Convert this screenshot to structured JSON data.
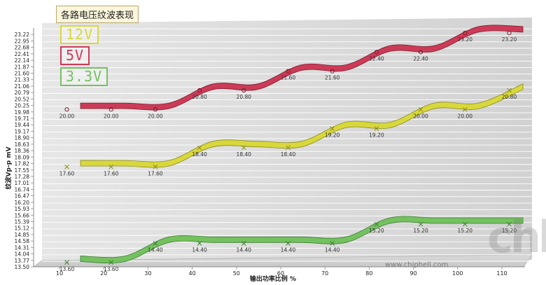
{
  "chart_data": {
    "type": "line",
    "title": "各路电压纹波表现",
    "xlabel": "输出功率比例 %",
    "ylabel": "纹波Vp-p mV",
    "x": [
      10,
      20,
      30,
      40,
      50,
      60,
      70,
      80,
      90,
      100,
      110
    ],
    "xticks": [
      10,
      20,
      30,
      40,
      50,
      60,
      70,
      80,
      90,
      100,
      110
    ],
    "ylim": [
      13.5,
      23.49
    ],
    "yticks": [
      "13.50",
      "13.77",
      "14.04",
      "14.31",
      "14.58",
      "14.85",
      "15.12",
      "15.39",
      "15.66",
      "15.93",
      "16.20",
      "16.47",
      "16.74",
      "17.01",
      "17.28",
      "17.55",
      "17.82",
      "18.09",
      "18.36",
      "18.63",
      "18.90",
      "19.17",
      "19.44",
      "19.71",
      "19.98",
      "20.25",
      "20.52",
      "20.79",
      "21.06",
      "21.33",
      "21.60",
      "21.87",
      "22.14",
      "22.41",
      "22.68",
      "22.95",
      "23.22"
    ],
    "grid": true,
    "series": [
      {
        "name": "12V",
        "color": "#d8d83c",
        "edge": "#8a8a1c",
        "values": [
          17.6,
          17.6,
          17.6,
          18.4,
          18.4,
          18.4,
          19.2,
          19.2,
          20.0,
          20.0,
          20.8
        ],
        "labels": [
          "17.60",
          "17.60",
          "17.60",
          "18.40",
          "18.40",
          "18.40",
          "19.20",
          "19.20",
          "20.00",
          "20.00",
          "20.80"
        ]
      },
      {
        "name": "5V",
        "color": "#cc3b57",
        "edge": "#7a1c2e",
        "values": [
          20.0,
          20.0,
          20.0,
          20.8,
          20.8,
          21.6,
          21.6,
          22.4,
          22.4,
          23.2,
          23.2
        ],
        "labels": [
          "20.00",
          "20.00",
          "20.00",
          "20.80",
          "20.80",
          "21.60",
          "21.60",
          "22.40",
          "22.40",
          "23.20",
          "23.20"
        ]
      },
      {
        "name": "3.3V",
        "color": "#74c160",
        "edge": "#3e7d30",
        "values": [
          13.6,
          13.6,
          14.4,
          14.4,
          14.4,
          14.4,
          14.4,
          15.2,
          15.2,
          15.2,
          15.2
        ],
        "labels": [
          "13.60",
          "13.60",
          "14.40",
          "14.40",
          "14.40",
          "14.40",
          "14.40",
          "15.20",
          "15.20",
          "15.20",
          "15.20"
        ]
      }
    ],
    "legend": "top-left",
    "watermark": "chh",
    "watermark_url": "www.chiphell.com"
  }
}
